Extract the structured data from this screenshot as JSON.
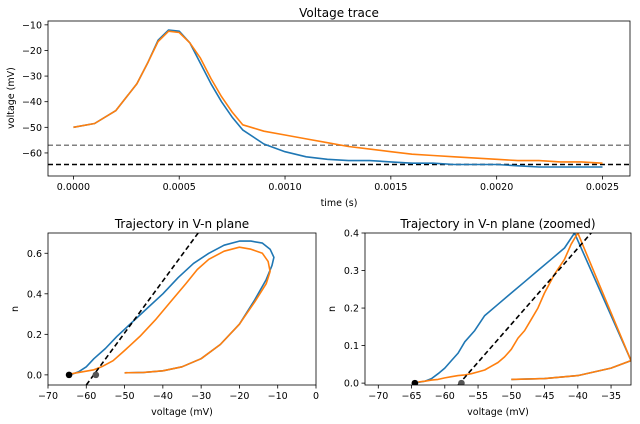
{
  "colors": {
    "blue": "#1f77b4",
    "orange": "#ff7f0e",
    "threshold_line": "#808080",
    "rest_line": "#000000"
  },
  "chart_data": [
    {
      "type": "line",
      "title": "Voltage trace",
      "xlabel": "time (s)",
      "ylabel": "voltage (mV)",
      "xlim": [
        -0.00012,
        0.00263
      ],
      "ylim": [
        -69,
        -8.5
      ],
      "xticks": [
        0,
        0.0005,
        0.001,
        0.0015,
        0.002,
        0.0025
      ],
      "xtick_labels": [
        "0.0000",
        "0.0005",
        "0.0010",
        "0.0015",
        "0.0020",
        "0.0025"
      ],
      "yticks": [
        -60,
        -50,
        -40,
        -30,
        -20,
        -10
      ],
      "ytick_labels": [
        "−60",
        "−50",
        "−40",
        "−30",
        "−20",
        "−10"
      ],
      "hlines": [
        {
          "y": -57,
          "style": "dashed",
          "color": "#808080"
        },
        {
          "y": -64.5,
          "style": "dashed",
          "color": "#000000"
        }
      ],
      "series": [
        {
          "color": "#1f77b4",
          "x": [
            0,
            0.0001,
            0.0002,
            0.0003,
            0.00035,
            0.0004,
            0.00045,
            0.0005,
            0.00055,
            0.0006,
            0.00065,
            0.0007,
            0.00075,
            0.0008,
            0.0009,
            0.001,
            0.0011,
            0.0012,
            0.0013,
            0.0014,
            0.0015,
            0.0016,
            0.0017,
            0.0018,
            0.0019,
            0.002,
            0.0021,
            0.0022,
            0.0023,
            0.0024,
            0.0025
          ],
          "y": [
            -50,
            -48.5,
            -43.5,
            -33,
            -25,
            -16,
            -12,
            -12.5,
            -17,
            -25,
            -33,
            -40,
            -46,
            -51,
            -56.5,
            -59.5,
            -61.5,
            -62.5,
            -63,
            -63,
            -63.5,
            -64,
            -64,
            -64.5,
            -64.5,
            -64.5,
            -65,
            -65.5,
            -65.5,
            -65.5,
            -65.5
          ]
        },
        {
          "color": "#ff7f0e",
          "x": [
            0,
            0.0001,
            0.0002,
            0.0003,
            0.00035,
            0.0004,
            0.00045,
            0.0005,
            0.00055,
            0.0006,
            0.00065,
            0.0007,
            0.00075,
            0.0008,
            0.0009,
            0.001,
            0.0011,
            0.0012,
            0.0013,
            0.0014,
            0.0015,
            0.0016,
            0.0017,
            0.0018,
            0.0019,
            0.002,
            0.0021,
            0.0022,
            0.0023,
            0.0024,
            0.0025
          ],
          "y": [
            -50,
            -48.5,
            -43.5,
            -33,
            -25,
            -16.5,
            -12.5,
            -13,
            -17,
            -23,
            -31,
            -38,
            -44,
            -49,
            -51.5,
            -53,
            -54.5,
            -56,
            -57.5,
            -58.5,
            -59.5,
            -60.5,
            -61,
            -61.5,
            -62,
            -62.5,
            -63,
            -63,
            -63.5,
            -63.5,
            -64
          ]
        }
      ]
    },
    {
      "type": "line",
      "title": "Trajectory in V-n plane",
      "xlabel": "voltage (mV)",
      "ylabel": "n",
      "xlim": [
        -70,
        0
      ],
      "ylim": [
        -0.05,
        0.7
      ],
      "xticks": [
        -70,
        -60,
        -50,
        -40,
        -30,
        -20,
        -10,
        0
      ],
      "xtick_labels": [
        "−70",
        "−60",
        "−50",
        "−40",
        "−30",
        "−20",
        "−10",
        "0"
      ],
      "yticks": [
        0,
        0.2,
        0.4,
        0.6
      ],
      "ytick_labels": [
        "0.0",
        "0.2",
        "0.4",
        "0.6"
      ],
      "dashed_line": {
        "x": [
          -60,
          -30
        ],
        "y": [
          -0.05,
          0.72
        ],
        "color": "#000000"
      },
      "points": [
        {
          "x": -64.5,
          "y": 0,
          "color": "#000000"
        },
        {
          "x": -57.5,
          "y": 0,
          "color": "#555555"
        }
      ],
      "series": [
        {
          "color": "#1f77b4",
          "x": [
            -50,
            -45,
            -40,
            -35,
            -30,
            -25,
            -20,
            -16,
            -13,
            -11.5,
            -11,
            -12,
            -14,
            -17,
            -20,
            -24,
            -28,
            -32,
            -36,
            -40,
            -44,
            -48,
            -52,
            -55,
            -58,
            -60,
            -62,
            -63.5,
            -64.5
          ],
          "y": [
            0.01,
            0.012,
            0.02,
            0.04,
            0.08,
            0.15,
            0.25,
            0.37,
            0.47,
            0.54,
            0.58,
            0.62,
            0.65,
            0.66,
            0.66,
            0.64,
            0.6,
            0.55,
            0.48,
            0.4,
            0.33,
            0.26,
            0.19,
            0.13,
            0.08,
            0.04,
            0.015,
            0.005,
            0
          ]
        },
        {
          "color": "#ff7f0e",
          "x": [
            -50,
            -45,
            -40,
            -35,
            -30,
            -25,
            -20,
            -16,
            -13,
            -12,
            -12.5,
            -14,
            -17,
            -20,
            -24,
            -28,
            -31,
            -34,
            -38,
            -42,
            -46,
            -50,
            -53,
            -56,
            -58,
            -59.5,
            -61,
            -62.5,
            -64
          ],
          "y": [
            0.01,
            0.012,
            0.02,
            0.04,
            0.08,
            0.15,
            0.25,
            0.36,
            0.45,
            0.51,
            0.56,
            0.6,
            0.62,
            0.63,
            0.61,
            0.57,
            0.52,
            0.45,
            0.36,
            0.27,
            0.19,
            0.12,
            0.07,
            0.04,
            0.025,
            0.02,
            0.015,
            0.01,
            0.005
          ]
        }
      ]
    },
    {
      "type": "line",
      "title": "Trajectory in V-n plane (zoomed)",
      "xlabel": "voltage (mV)",
      "ylabel": "n",
      "xlim": [
        -72,
        -32
      ],
      "ylim": [
        -0.005,
        0.4
      ],
      "xticks": [
        -70,
        -65,
        -60,
        -55,
        -50,
        -45,
        -40,
        -35
      ],
      "xtick_labels": [
        "−70",
        "−65",
        "−60",
        "−55",
        "−50",
        "−45",
        "−40",
        "−35"
      ],
      "yticks": [
        0,
        0.1,
        0.2,
        0.3,
        0.4
      ],
      "ytick_labels": [
        "0.0",
        "0.1",
        "0.2",
        "0.3",
        "0.4"
      ],
      "dashed_line": {
        "x": [
          -58,
          -37
        ],
        "y": [
          -0.005,
          0.42
        ],
        "color": "#000000"
      },
      "points": [
        {
          "x": -64.5,
          "y": 0,
          "color": "#000000"
        },
        {
          "x": -57.5,
          "y": 0,
          "color": "#555555"
        }
      ],
      "series": [
        {
          "color": "#1f77b4",
          "x": [
            -50,
            -45,
            -40,
            -35,
            -32,
            -40.5,
            -42,
            -44,
            -46,
            -48,
            -50,
            -52,
            -54,
            -55.5,
            -57,
            -58,
            -59,
            -60,
            -61,
            -62,
            -63,
            -64,
            -64.5
          ],
          "y": [
            0.01,
            0.012,
            0.02,
            0.04,
            0.06,
            0.4,
            0.36,
            0.33,
            0.3,
            0.27,
            0.24,
            0.21,
            0.18,
            0.14,
            0.11,
            0.08,
            0.06,
            0.04,
            0.025,
            0.012,
            0.005,
            0.002,
            0
          ]
        },
        {
          "color": "#ff7f0e",
          "x": [
            -50,
            -45,
            -40,
            -35,
            -32,
            -40,
            -41,
            -42,
            -43.5,
            -45,
            -46,
            -47,
            -48,
            -49,
            -50,
            -51,
            -52,
            -53,
            -54,
            -55,
            -56,
            -57,
            -58,
            -59,
            -60,
            -61,
            -62,
            -63,
            -64
          ],
          "y": [
            0.01,
            0.012,
            0.02,
            0.04,
            0.06,
            0.4,
            0.37,
            0.33,
            0.29,
            0.24,
            0.2,
            0.17,
            0.14,
            0.12,
            0.09,
            0.07,
            0.055,
            0.045,
            0.035,
            0.03,
            0.025,
            0.022,
            0.02,
            0.017,
            0.014,
            0.01,
            0.008,
            0.005,
            0.003
          ]
        }
      ]
    }
  ]
}
